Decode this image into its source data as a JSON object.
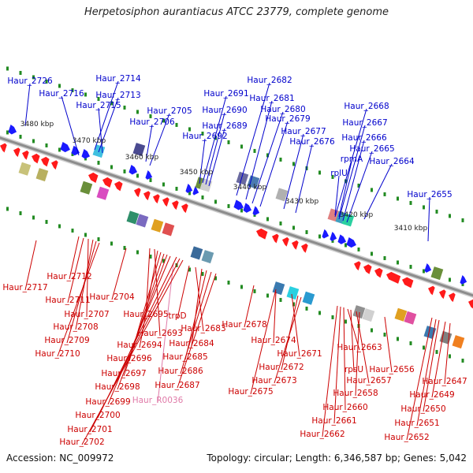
{
  "title": "Herpetosiphon aurantiacus ATCC 23779, complete genome",
  "footer": {
    "accession": "Accession: NC_009972",
    "topology": "Topology: circular; Length: 6,346,587 bp; Genes: 5,042"
  },
  "colors": {
    "forward_label": "#0000cc",
    "reverse_label": "#cc0000",
    "rna_label": "#e07aa8",
    "forward_gene": "#1a1aff",
    "reverse_gene": "#ff1a1a",
    "backbone": "#8c8c8c",
    "tick": "#228b22"
  },
  "scale_labels": [
    "3480 kbp",
    "3470 kbp",
    "3460 kbp",
    "3450 kbp",
    "3440 kbp",
    "3430 kbp",
    "3420 kbp",
    "3410 kbp"
  ],
  "forward_genes": [
    "Haur_2726",
    "Haur_2716",
    "Haur_2714",
    "Haur_2713",
    "Haur_2715",
    "Haur_2705",
    "Haur_2706",
    "Haur_2691",
    "Haur_2690",
    "Haur_2689",
    "Haur_2692",
    "Haur_2682",
    "Haur_2681",
    "Haur_2680",
    "Haur_2679",
    "Haur_2677",
    "Haur_2676",
    "Haur_2668",
    "Haur_2667",
    "Haur_2666",
    "Haur_2665",
    "rpmA",
    "rplU",
    "Haur_2664",
    "Haur_2655"
  ],
  "reverse_genes": [
    "Haur_2717",
    "Haur_2712",
    "Haur_2711",
    "Haur_2704",
    "Haur_2707",
    "Haur_2708",
    "Haur_2709",
    "Haur_2710",
    "Haur_2695",
    "Haur_2693",
    "Haur_2694",
    "Haur_2696",
    "Haur_2697",
    "Haur_2698",
    "Haur_2699",
    "Haur_R0036",
    "Haur_2700",
    "Haur_2701",
    "Haur_2702",
    "trpD",
    "Haur_2683",
    "Haur_2684",
    "Haur_2685",
    "Haur_2686",
    "Haur_2687",
    "Haur_2678",
    "Haur_2674",
    "Haur_2671",
    "Haur_2672",
    "Haur_2673",
    "Haur_2675",
    "Haur_2663",
    "rpsU",
    "Haur_2657",
    "Haur_2658",
    "Haur_2656",
    "Haur_2660",
    "Haur_2661",
    "Haur_2662",
    "Haur_2647",
    "Haur_2649",
    "Haur_2650",
    "Haur_2651",
    "Haur_2652"
  ]
}
